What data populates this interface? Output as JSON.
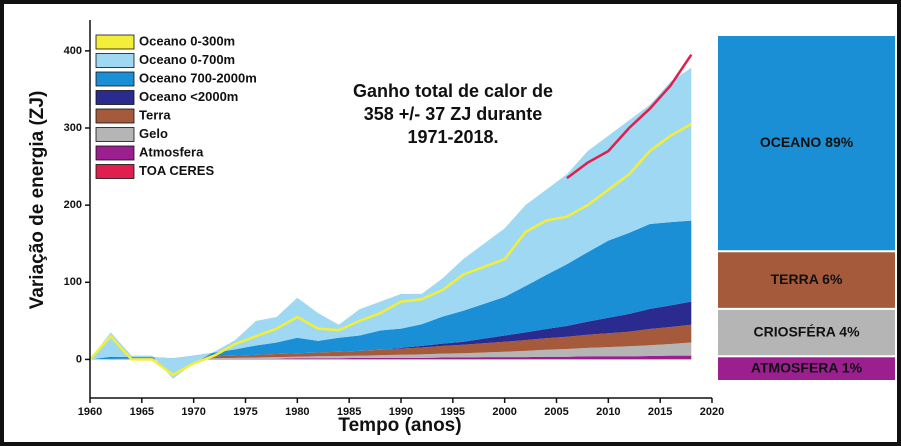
{
  "chart_data": [
    {
      "type": "stacked-area",
      "annotation": [
        "Ganho total de calor de",
        "358 +/- 37 ZJ durante",
        "1971-2018."
      ],
      "xlabel": "Tempo (anos)",
      "ylabel": "Variação de energia (ZJ)",
      "x": [
        1960,
        1962,
        1964,
        1966,
        1968,
        1970,
        1972,
        1974,
        1976,
        1978,
        1980,
        1982,
        1984,
        1986,
        1988,
        1990,
        1992,
        1994,
        1996,
        1998,
        2000,
        2002,
        2004,
        2006,
        2008,
        2010,
        2012,
        2014,
        2016,
        2018
      ],
      "xlim": [
        1960,
        2020
      ],
      "xticks": [
        1960,
        1965,
        1970,
        1975,
        1980,
        1985,
        1990,
        1995,
        2000,
        2005,
        2010,
        2015,
        2020
      ],
      "ylim": [
        -50,
        440
      ],
      "yticks": [
        0,
        100,
        200,
        300,
        400
      ],
      "series": [
        {
          "name": "Oceano 0-300m",
          "kind": "line",
          "color": "#f2ee3a",
          "values": [
            0,
            30,
            0,
            0,
            -20,
            -5,
            5,
            20,
            30,
            40,
            55,
            40,
            38,
            50,
            60,
            75,
            78,
            90,
            110,
            120,
            130,
            165,
            180,
            185,
            200,
            220,
            240,
            270,
            290,
            305
          ]
        },
        {
          "name": "Oceano 0-700m",
          "kind": "area",
          "color": "#9fd8f2",
          "values": [
            0,
            31.5,
            2,
            2,
            -26.5,
            -10,
            1,
            12,
            32,
            33,
            52,
            36,
            17,
            34,
            37.5,
            45,
            39.5,
            49.5,
            67,
            78,
            89,
            105,
            110.5,
            116.5,
            131,
            136,
            146,
            154.5,
            182,
            198
          ]
        },
        {
          "name": "Oceano 700-2000m",
          "kind": "area",
          "color": "#1a8fd6",
          "values": [
            0,
            3,
            2,
            2,
            0,
            2,
            5,
            8,
            12,
            15,
            20,
            15,
            18,
            20,
            25,
            25,
            28,
            35,
            40,
            45,
            50,
            60,
            70,
            80,
            90,
            100,
            105,
            110,
            108,
            105
          ]
        },
        {
          "name": "Oceano <2000m",
          "kind": "area",
          "color": "#2b2b8f",
          "values": [
            0,
            0,
            0,
            0,
            0,
            0,
            0,
            0,
            0,
            0,
            0,
            0,
            0,
            0,
            0,
            1,
            2,
            3,
            4,
            6,
            8,
            10,
            12,
            14,
            17,
            20,
            23,
            26,
            28,
            30
          ]
        },
        {
          "name": "Terra",
          "kind": "area",
          "color": "#a65a3c",
          "values": [
            0,
            0.5,
            1,
            1,
            1.5,
            2,
            2.5,
            3,
            3.5,
            4,
            4.5,
            5,
            5.5,
            6,
            7,
            8,
            9,
            10,
            11,
            12,
            13,
            14,
            15,
            16,
            17,
            18,
            19,
            21,
            22,
            23
          ]
        },
        {
          "name": "Gelo",
          "kind": "area",
          "color": "#b5b5b5",
          "values": [
            0,
            0,
            0,
            0,
            0,
            0.5,
            1,
            1,
            1.5,
            2,
            2,
            2.5,
            3,
            3,
            3.5,
            4,
            4.5,
            5,
            5.5,
            6,
            7,
            8,
            9,
            10,
            11,
            12,
            13,
            14,
            15,
            17
          ]
        },
        {
          "name": "Atmosfera",
          "kind": "area",
          "color": "#9b1f8f",
          "values": [
            0,
            0,
            0,
            0,
            0,
            0.5,
            0.5,
            1,
            1,
            1,
            1.5,
            1.5,
            1.5,
            2,
            2,
            2,
            2,
            2.5,
            2.5,
            3,
            3,
            3,
            3.5,
            3.5,
            4,
            4,
            4,
            4.5,
            5,
            5
          ]
        },
        {
          "name": "TOA CERES",
          "kind": "line",
          "color": "#e01f4f",
          "values": [
            null,
            null,
            null,
            null,
            null,
            null,
            null,
            null,
            null,
            null,
            null,
            null,
            null,
            null,
            null,
            null,
            null,
            null,
            null,
            null,
            null,
            null,
            null,
            235,
            255,
            270,
            300,
            325,
            355,
            395
          ]
        }
      ]
    },
    {
      "type": "share-bar",
      "categories": [
        "OCEANO",
        "TERRA",
        "CRIOSFÉRA",
        "ATMOSFERA"
      ],
      "values": [
        89,
        6,
        4,
        1
      ],
      "value_labels": [
        "89%",
        "6%",
        "4%",
        "1%"
      ],
      "colors": [
        "#1a8fd6",
        "#a65a3c",
        "#b5b5b5",
        "#9b1f8f"
      ]
    }
  ]
}
